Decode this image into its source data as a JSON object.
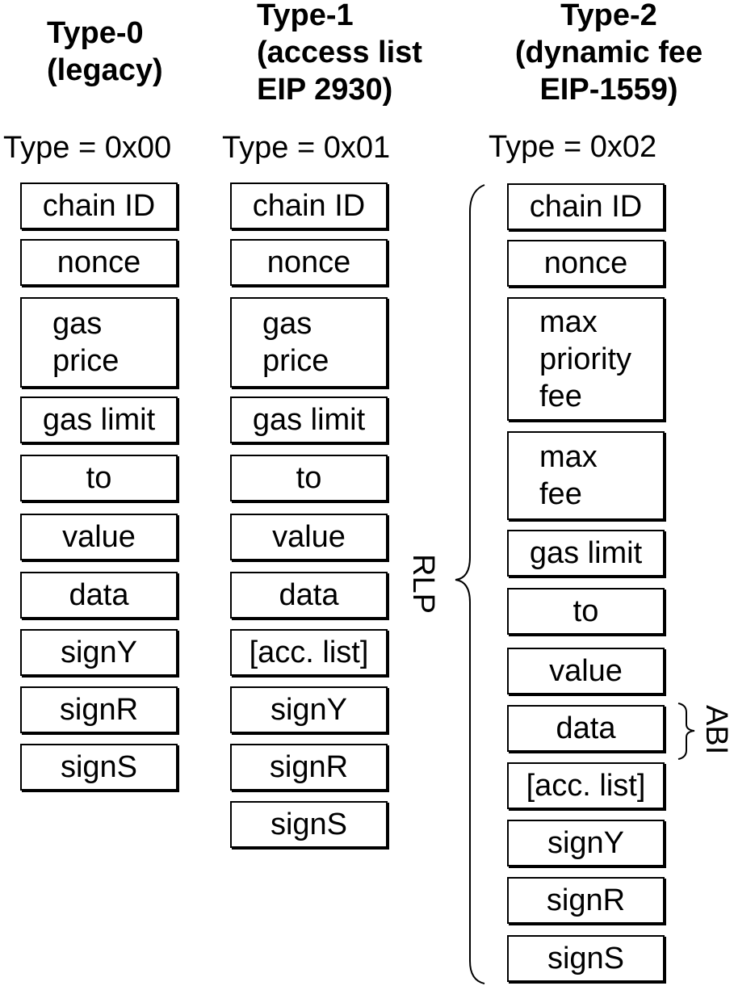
{
  "columns": [
    {
      "heading": "Type-0\n(legacy)",
      "type_code": "Type = 0x00",
      "fields": [
        "chain ID",
        "nonce",
        "gas\nprice",
        "gas limit",
        "to",
        "value",
        "data",
        "signY",
        "signR",
        "signS"
      ]
    },
    {
      "heading": "Type-1\n(access list\nEIP 2930)",
      "type_code": "Type = 0x01",
      "fields": [
        "chain ID",
        "nonce",
        "gas\nprice",
        "gas limit",
        "to",
        "value",
        "data",
        "[acc. list]",
        "signY",
        "signR",
        "signS"
      ]
    },
    {
      "heading": "Type-2\n(dynamic fee\nEIP-1559)",
      "type_code": "Type = 0x02",
      "fields": [
        "chain ID",
        "nonce",
        "max\npriority\nfee",
        "max\nfee",
        "gas limit",
        "to",
        "value",
        "data",
        "[acc. list]",
        "signY",
        "signR",
        "signS"
      ]
    }
  ],
  "annotations": {
    "rlp": "RLP",
    "abi": "ABI"
  }
}
